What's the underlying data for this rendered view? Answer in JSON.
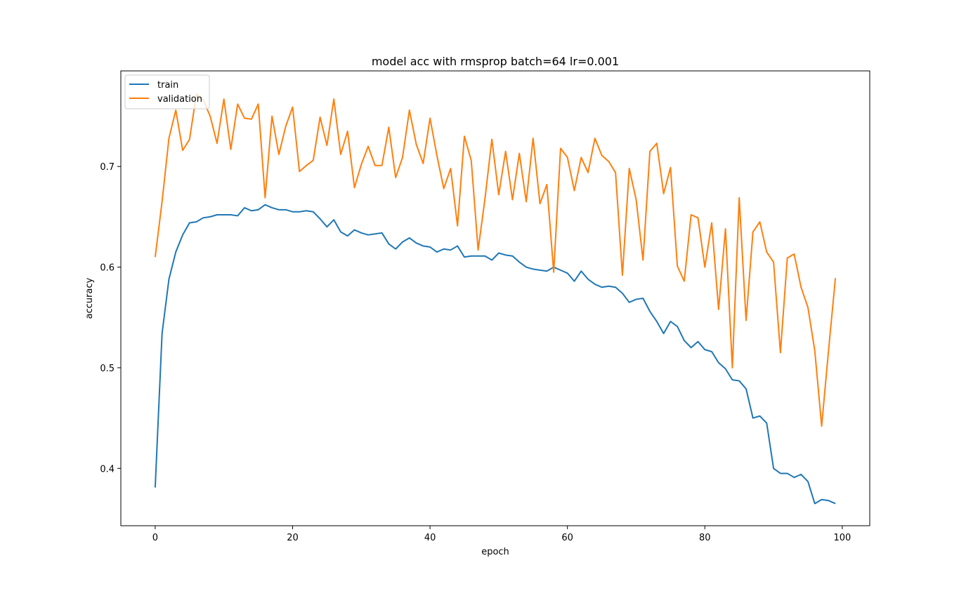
{
  "chart_data": {
    "type": "line",
    "title": "model acc with rmsprop batch=64 lr=0.001",
    "xlabel": "epoch",
    "ylabel": "accuracy",
    "xlim": [
      -5,
      104
    ],
    "ylim": [
      0.343,
      0.795
    ],
    "xticks": [
      0,
      20,
      40,
      60,
      80,
      100
    ],
    "yticks": [
      0.4,
      0.5,
      0.6,
      0.7
    ],
    "x_tick_labels": [
      "0",
      "20",
      "40",
      "60",
      "80",
      "100"
    ],
    "y_tick_labels": [
      "0.4",
      "0.5",
      "0.6",
      "0.7"
    ],
    "grid": false,
    "legend_position": "upper left",
    "series": [
      {
        "name": "train",
        "color": "#1f77b4",
        "values": [
          0.381,
          0.534,
          0.588,
          0.615,
          0.632,
          0.644,
          0.645,
          0.649,
          0.65,
          0.652,
          0.652,
          0.652,
          0.651,
          0.659,
          0.656,
          0.657,
          0.662,
          0.659,
          0.657,
          0.657,
          0.655,
          0.655,
          0.656,
          0.655,
          0.648,
          0.64,
          0.647,
          0.635,
          0.631,
          0.637,
          0.634,
          0.632,
          0.633,
          0.634,
          0.623,
          0.618,
          0.625,
          0.629,
          0.624,
          0.621,
          0.62,
          0.615,
          0.618,
          0.617,
          0.621,
          0.61,
          0.611,
          0.611,
          0.611,
          0.607,
          0.614,
          0.612,
          0.611,
          0.605,
          0.6,
          0.598,
          0.597,
          0.596,
          0.6,
          0.597,
          0.594,
          0.586,
          0.596,
          0.588,
          0.583,
          0.58,
          0.581,
          0.58,
          0.574,
          0.565,
          0.568,
          0.569,
          0.556,
          0.546,
          0.534,
          0.546,
          0.541,
          0.527,
          0.52,
          0.526,
          0.518,
          0.516,
          0.505,
          0.499,
          0.488,
          0.487,
          0.479,
          0.45,
          0.452,
          0.445,
          0.4,
          0.395,
          0.395,
          0.391,
          0.394,
          0.387,
          0.365,
          0.369,
          0.368,
          0.365
        ]
      },
      {
        "name": "validation",
        "color": "#ff7f0e",
        "values": [
          0.61,
          0.665,
          0.728,
          0.756,
          0.716,
          0.727,
          0.772,
          0.766,
          0.75,
          0.723,
          0.767,
          0.717,
          0.762,
          0.748,
          0.747,
          0.762,
          0.669,
          0.75,
          0.712,
          0.74,
          0.759,
          0.695,
          0.701,
          0.706,
          0.749,
          0.721,
          0.767,
          0.712,
          0.735,
          0.679,
          0.702,
          0.72,
          0.701,
          0.701,
          0.739,
          0.689,
          0.709,
          0.756,
          0.722,
          0.703,
          0.748,
          0.711,
          0.678,
          0.698,
          0.641,
          0.73,
          0.706,
          0.617,
          0.668,
          0.727,
          0.672,
          0.715,
          0.667,
          0.713,
          0.665,
          0.728,
          0.663,
          0.682,
          0.595,
          0.718,
          0.709,
          0.676,
          0.709,
          0.694,
          0.728,
          0.711,
          0.705,
          0.694,
          0.592,
          0.698,
          0.667,
          0.607,
          0.715,
          0.723,
          0.673,
          0.699,
          0.601,
          0.586,
          0.652,
          0.649,
          0.6,
          0.644,
          0.558,
          0.638,
          0.5,
          0.669,
          0.547,
          0.635,
          0.645,
          0.615,
          0.605,
          0.515,
          0.609,
          0.613,
          0.58,
          0.56,
          0.517,
          0.442,
          0.517,
          0.589
        ]
      }
    ]
  }
}
